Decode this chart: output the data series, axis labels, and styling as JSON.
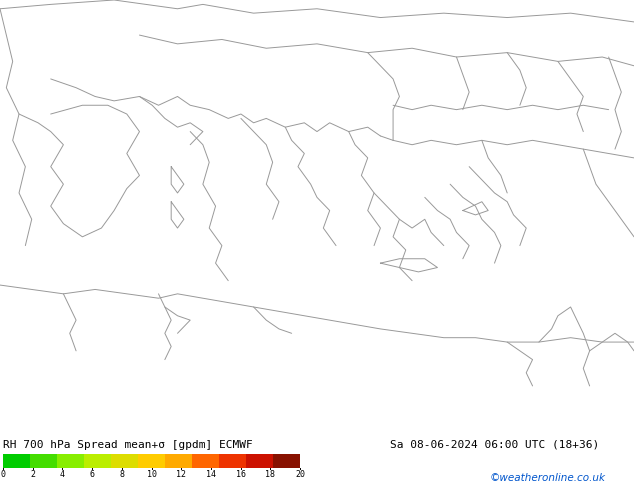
{
  "title_left": "RH 700 hPa Spread mean+σ [gpdm] ECMWF",
  "title_right": "Sa 08-06-2024 06:00 UTC (18+36)",
  "watermark": "©weatheronline.co.uk",
  "map_bg": "#00ee00",
  "coastline_color": "#999999",
  "bottom_bg": "#ffffff",
  "colorbar_values": [
    0,
    2,
    4,
    6,
    8,
    10,
    12,
    14,
    16,
    18,
    20
  ],
  "colorbar_colors": [
    "#00cc00",
    "#44dd00",
    "#88ee00",
    "#bbee00",
    "#dddd00",
    "#ffcc00",
    "#ffaa00",
    "#ff6600",
    "#ee3300",
    "#cc1100",
    "#881100"
  ],
  "fig_width": 6.34,
  "fig_height": 4.9,
  "dpi": 100,
  "label_fontsize": 8,
  "title_fontsize": 8
}
